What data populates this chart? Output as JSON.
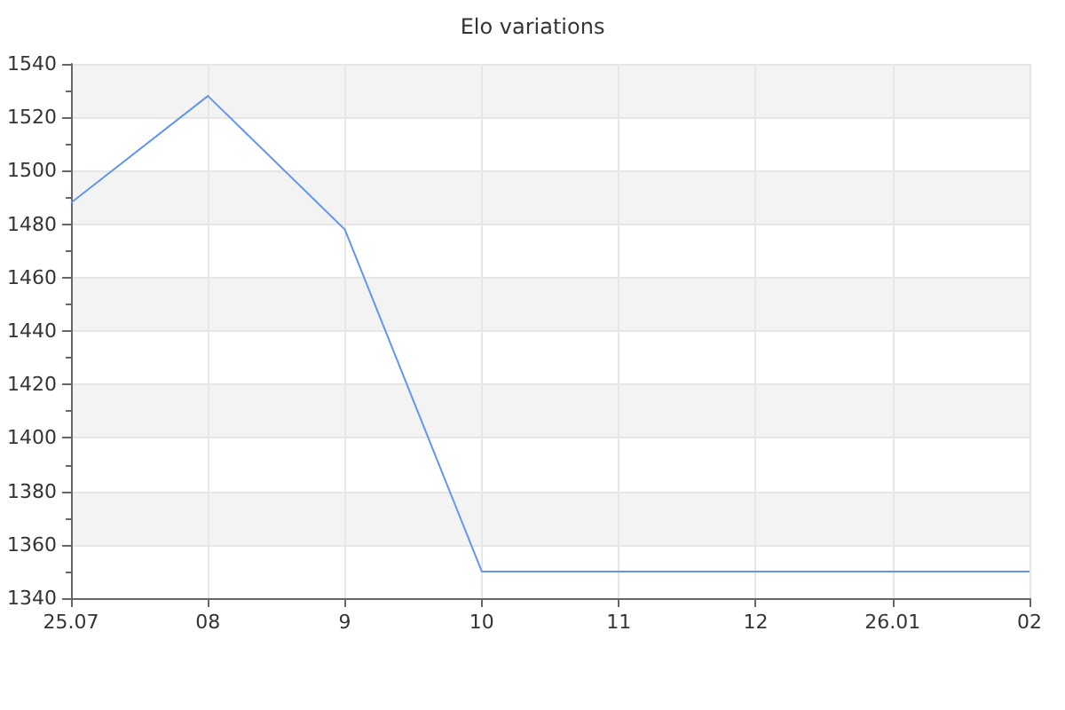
{
  "chart_data": {
    "type": "line",
    "title": "Elo variations",
    "categories": [
      "25.07",
      "08",
      "9",
      "10",
      "11",
      "12",
      "26.01",
      "02"
    ],
    "series": [
      {
        "color": "#6495ed",
        "values": [
          1488,
          1528,
          1478,
          1350,
          1350,
          1350,
          1350,
          1350
        ]
      }
    ],
    "ylim": [
      1340,
      1540
    ],
    "yticks": [
      1340,
      1360,
      1380,
      1400,
      1420,
      1440,
      1460,
      1480,
      1500,
      1520,
      1540
    ],
    "grid": true,
    "marker": "none",
    "line_style": "solid"
  }
}
